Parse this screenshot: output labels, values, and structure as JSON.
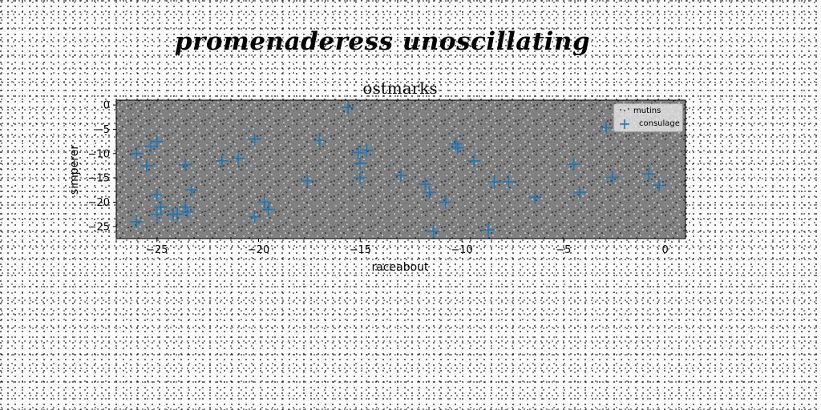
{
  "page_title": "promenaderess unoscillating",
  "chart_data": {
    "type": "scatter",
    "title": "ostmarks",
    "xlabel": "raceabout",
    "ylabel": "simperer",
    "xlim": [
      -27,
      1
    ],
    "ylim": [
      -27.5,
      1
    ],
    "xticks": [
      -25,
      -20,
      -15,
      -10,
      -5,
      0
    ],
    "yticks": [
      0,
      -5,
      -10,
      -15,
      -20,
      -25
    ],
    "grid": false,
    "legend_position": "top-right",
    "plot_background": "#808080",
    "series": [
      {
        "name": "mutins",
        "marker": "point",
        "color": "#1a1a1a",
        "note": "dense random point cloud filling the plot area"
      },
      {
        "name": "consulage",
        "marker": "plus",
        "color": "#1f77b4",
        "points": [
          [
            -26,
            -10
          ],
          [
            -25.5,
            -12.5
          ],
          [
            -25.3,
            -8.5
          ],
          [
            -25,
            -7.5
          ],
          [
            -26,
            -24
          ],
          [
            -25,
            -22.5
          ],
          [
            -25,
            -18.5
          ],
          [
            -24.8,
            -21
          ],
          [
            -24.2,
            -22.5
          ],
          [
            -24,
            -22.5
          ],
          [
            -23.6,
            -21
          ],
          [
            -23.6,
            -12.3
          ],
          [
            -23.3,
            -17.5
          ],
          [
            -23.5,
            -22
          ],
          [
            -21.8,
            -11.5
          ],
          [
            -21,
            -11
          ],
          [
            -20.2,
            -7
          ],
          [
            -20.2,
            -23
          ],
          [
            -19.7,
            -20
          ],
          [
            -19.5,
            -21.5
          ],
          [
            -17.6,
            -15.6
          ],
          [
            -17,
            -7.3
          ],
          [
            -15.6,
            -0.5
          ],
          [
            -15.1,
            -9.8
          ],
          [
            -15,
            -12
          ],
          [
            -15,
            -15
          ],
          [
            -14.7,
            -9.3
          ],
          [
            -13,
            -14.5
          ],
          [
            -11.8,
            -16.3
          ],
          [
            -11.6,
            -18
          ],
          [
            -11.4,
            -26
          ],
          [
            -10.8,
            -20
          ],
          [
            -10.3,
            -8
          ],
          [
            -10.2,
            -8.8
          ],
          [
            -9.4,
            -11.5
          ],
          [
            -8.7,
            -25.7
          ],
          [
            -8.4,
            -15.8
          ],
          [
            -7.7,
            -15.8
          ],
          [
            -6.4,
            -19
          ],
          [
            -4.5,
            -12.2
          ],
          [
            -4.2,
            -18
          ],
          [
            -2.9,
            -4.7
          ],
          [
            -2.6,
            -14.9
          ],
          [
            -0.8,
            -14.2
          ],
          [
            -0.3,
            -16.5
          ]
        ]
      }
    ]
  }
}
